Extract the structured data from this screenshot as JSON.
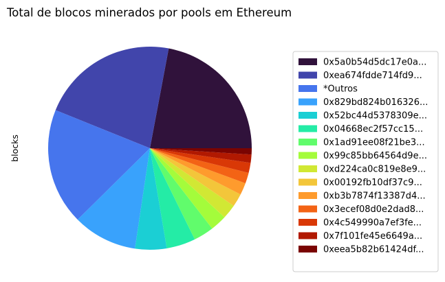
{
  "chart_data": {
    "type": "pie",
    "title": "Total de blocos minerados por pools em Ethereum",
    "ylabel": "blocks",
    "legend_position": "right",
    "slices": [
      {
        "label": "0x5a0b54d5dc17e0a...",
        "value": 22.0,
        "color": "#30123b"
      },
      {
        "label": "0xea674fdde714fd9...",
        "value": 21.8,
        "color": "#4145ab"
      },
      {
        "label": "*Outros",
        "value": 18.5,
        "color": "#4675ed"
      },
      {
        "label": "0x829bd824b016326...",
        "value": 10.2,
        "color": "#39a2fc"
      },
      {
        "label": "0x52bc44d5378309e...",
        "value": 5.0,
        "color": "#1bcfd4"
      },
      {
        "label": "0x04668ec2f57cc15...",
        "value": 4.6,
        "color": "#24eca6"
      },
      {
        "label": "0x1ad91ee08f21be3...",
        "value": 3.2,
        "color": "#61fc6c"
      },
      {
        "label": "0x99c85bb64564d9e...",
        "value": 2.6,
        "color": "#a4fc3b"
      },
      {
        "label": "0xd224ca0c819e8e9...",
        "value": 2.3,
        "color": "#d1e834"
      },
      {
        "label": "0x00192fb10df37c9...",
        "value": 2.1,
        "color": "#f3c63a"
      },
      {
        "label": "0xb3b7874f13387d4...",
        "value": 1.9,
        "color": "#fe9b2d"
      },
      {
        "label": "0x3ecef08d0e2dad8...",
        "value": 1.7,
        "color": "#f36315"
      },
      {
        "label": "0x4c549990a7ef3fe...",
        "value": 1.6,
        "color": "#d93806"
      },
      {
        "label": "0x7f101fe45e6649a...",
        "value": 1.3,
        "color": "#b11901"
      },
      {
        "label": "0xeea5b82b61424df...",
        "value": 1.0,
        "color": "#7a0402"
      }
    ]
  }
}
